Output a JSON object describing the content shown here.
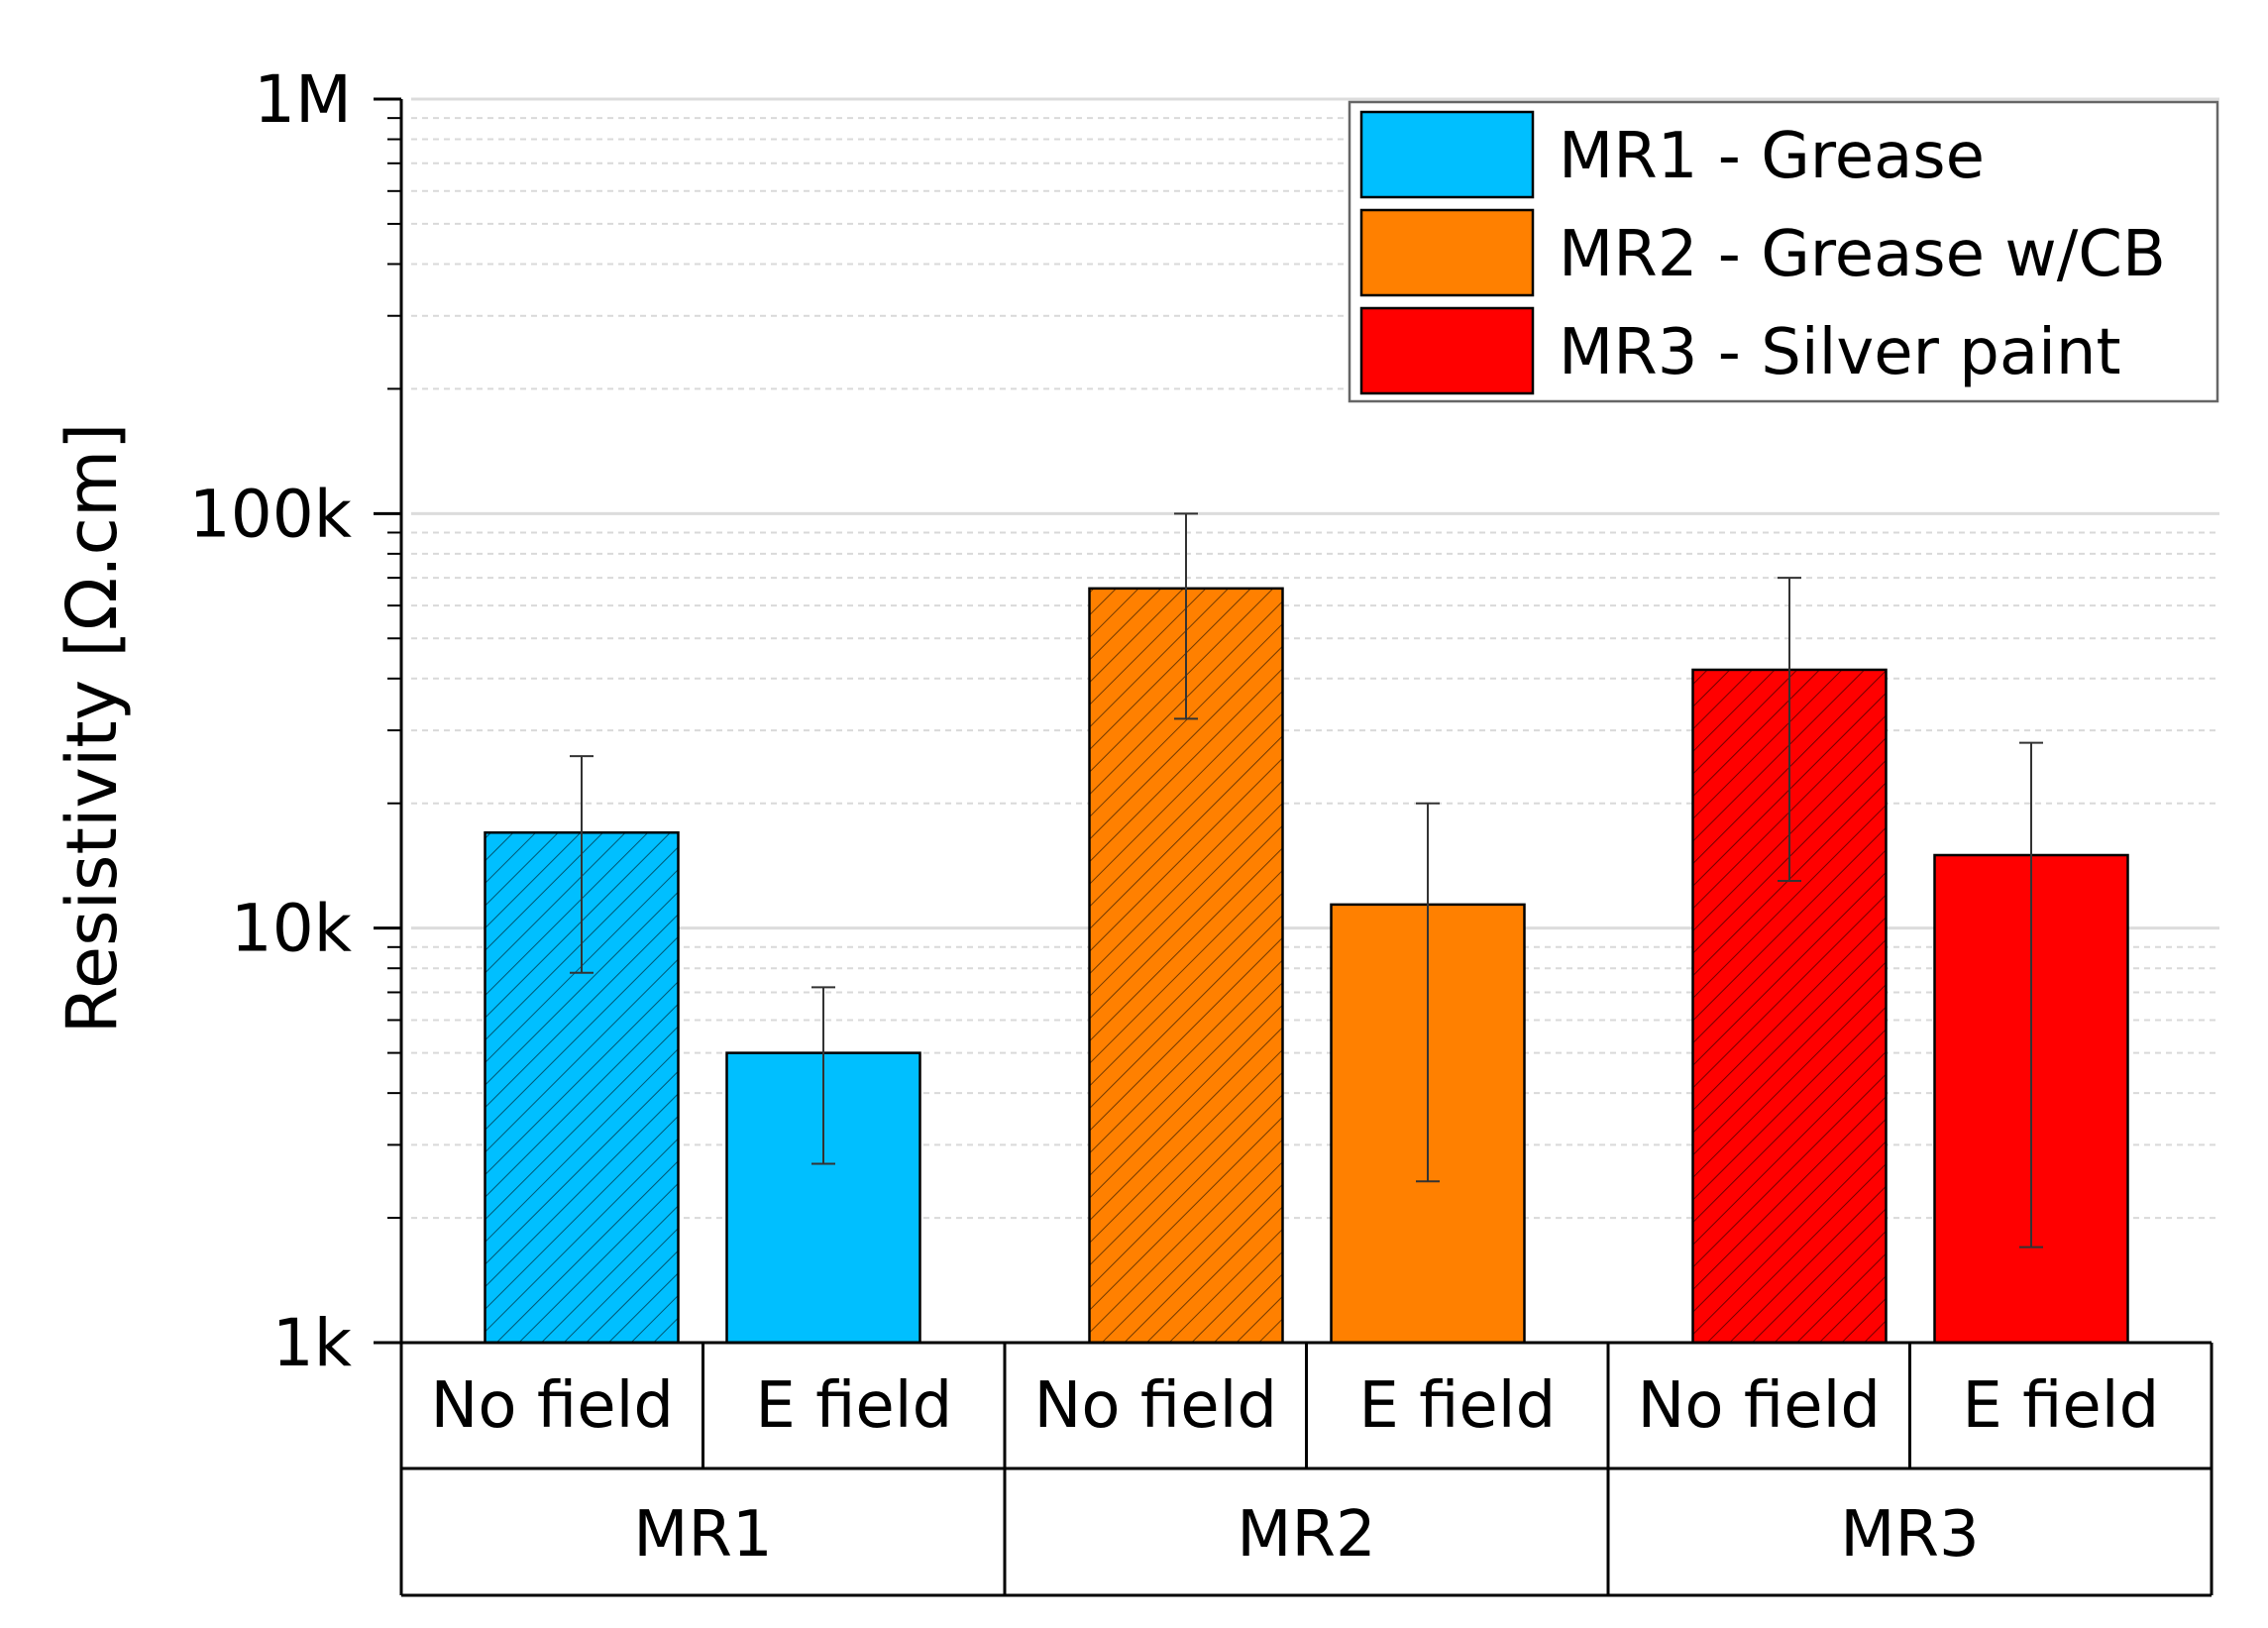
{
  "chart_data": {
    "type": "bar",
    "title": "",
    "ylabel": "Resistivity [Ω.cm]",
    "yscale": "log",
    "ylim": [
      1000,
      1000000
    ],
    "yticks": [
      {
        "value": 1000,
        "label": "1k"
      },
      {
        "value": 10000,
        "label": "10k"
      },
      {
        "value": 100000,
        "label": "100k"
      },
      {
        "value": 1000000,
        "label": "1M"
      }
    ],
    "grid": "horizontal major solid, minor dashed",
    "legend_position": "top-right",
    "groups": [
      "MR1",
      "MR2",
      "MR3"
    ],
    "subcategories": [
      "No field",
      "E field"
    ],
    "series": [
      {
        "name": "MR1 - Grease",
        "group": "MR1",
        "color": "#00BFFF",
        "values": [
          {
            "label": "No field",
            "value": 17000,
            "err_low": 7800,
            "err_high": 26000,
            "hatched": true
          },
          {
            "label": "E field",
            "value": 5000,
            "err_low": 2700,
            "err_high": 7200,
            "hatched": false
          }
        ]
      },
      {
        "name": "MR2 - Grease w/CB",
        "group": "MR2",
        "color": "#FF8000",
        "values": [
          {
            "label": "No field",
            "value": 66000,
            "err_low": 32000,
            "err_high": 100000,
            "hatched": true
          },
          {
            "label": "E field",
            "value": 11400,
            "err_low": 2450,
            "err_high": 20000,
            "hatched": false
          }
        ]
      },
      {
        "name": "MR3 - Silver paint",
        "group": "MR3",
        "color": "#FF0000",
        "values": [
          {
            "label": "No field",
            "value": 42000,
            "err_low": 13000,
            "err_high": 70000,
            "hatched": true
          },
          {
            "label": "E field",
            "value": 15000,
            "err_low": 1700,
            "err_high": 28000,
            "hatched": false
          }
        ]
      }
    ]
  }
}
